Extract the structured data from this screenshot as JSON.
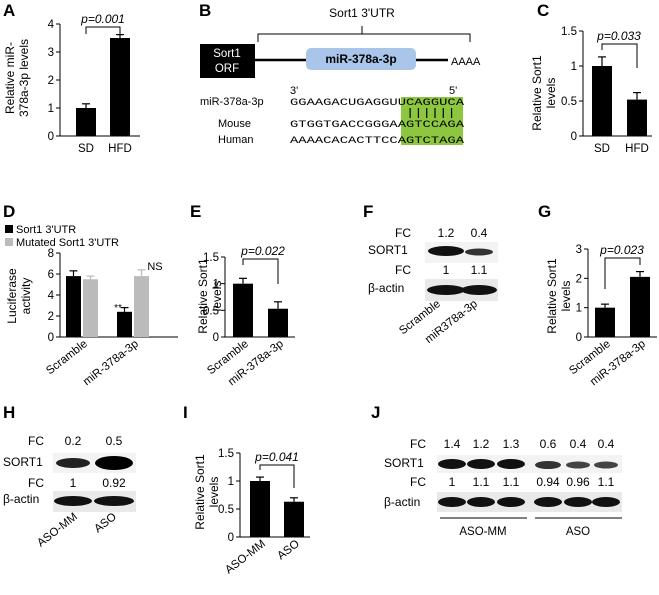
{
  "panels": {
    "A": {
      "label": "A",
      "ylabel": [
        "Relative miR-",
        "378a-3p levels"
      ],
      "pvalue": "p=0.001"
    },
    "B": {
      "label": "B",
      "utr_title": "Sort1 3'UTR",
      "orf_label": [
        "Sort1",
        "ORF"
      ],
      "mirna_box": "miR-378a-3p",
      "polyA": "AAAA",
      "end3": "3'",
      "end5": "5'",
      "rows": [
        {
          "name": "miR-378a-3p",
          "seq": "GGAAGACUGAGGUUCAGGUCA"
        },
        {
          "name": "Mouse",
          "seq": "GTGGTGACCGGGAAGTCCAGA"
        },
        {
          "name": "Human",
          "seq": "AAAACACACTTCCAGTCTAGA"
        }
      ],
      "seed_color": "#8dc63f",
      "box_color": "#a9c6ea"
    },
    "C": {
      "label": "C",
      "ylabel": [
        "Relative Sort1",
        "levels"
      ],
      "pvalue": "p=0.033"
    },
    "D": {
      "label": "D",
      "ylabel": [
        "Luciferase",
        "activity"
      ],
      "legend": [
        "Sort1 3'UTR",
        "Mutated Sort1 3'UTR"
      ],
      "star": "**",
      "ns": "NS"
    },
    "E": {
      "label": "E",
      "ylabel": [
        "Relative Sort1",
        "levels"
      ],
      "pvalue": "p=0.022"
    },
    "F": {
      "label": "F",
      "fc_label": "FC",
      "sort1": "SORT1",
      "actin": "β-actin",
      "fc_top": [
        "1.2",
        "0.4"
      ],
      "fc_bottom": [
        "1",
        "1.1"
      ],
      "lanes": [
        "Scramble",
        "miR378a-3p"
      ]
    },
    "G": {
      "label": "G",
      "ylabel": [
        "Relative Sort1",
        "levels"
      ],
      "pvalue": "p=0.023"
    },
    "H": {
      "label": "H",
      "fc_label": "FC",
      "sort1": "SORT1",
      "actin": "β-actin",
      "fc_top": [
        "0.2",
        "0.5"
      ],
      "fc_bottom": [
        "1",
        "0.92"
      ],
      "lanes": [
        "ASO-MM",
        "ASO"
      ]
    },
    "I": {
      "label": "I",
      "ylabel": [
        "Relative Sort1",
        "levels"
      ],
      "pvalue": "p=0.041"
    },
    "J": {
      "label": "J",
      "fc_label": "FC",
      "sort1": "SORT1",
      "actin": "β-actin",
      "fc_top": [
        "1.4",
        "1.2",
        "1.3",
        "0.6",
        "0.4",
        "0.4"
      ],
      "fc_bottom": [
        "1",
        "1.1",
        "1.1",
        "0.94",
        "0.96",
        "1.1"
      ],
      "groups": [
        "ASO-MM",
        "ASO"
      ]
    }
  },
  "chart_data": [
    {
      "id": "A",
      "type": "bar",
      "categories": [
        "SD",
        "HFD"
      ],
      "values": [
        1,
        3.5
      ],
      "errors": [
        0.15,
        0.12
      ],
      "ylim": [
        0,
        4
      ],
      "yticks": [
        "0",
        "1",
        "2",
        "3",
        "4"
      ],
      "ytickvals": [
        0,
        1,
        2,
        3,
        4
      ],
      "colors": [
        "#000",
        "#000"
      ]
    },
    {
      "id": "C",
      "type": "bar",
      "categories": [
        "SD",
        "HFD"
      ],
      "values": [
        1,
        0.52
      ],
      "errors": [
        0.13,
        0.1
      ],
      "ylim": [
        0,
        1.5
      ],
      "yticks": [
        "0",
        "0.5",
        "1",
        "1.5"
      ],
      "ytickvals": [
        0,
        0.5,
        1,
        1.5
      ],
      "colors": [
        "#000",
        "#000"
      ]
    },
    {
      "id": "D",
      "type": "bar",
      "categories": [
        "Scramble",
        "miR-378a-3p"
      ],
      "series": [
        {
          "name": "Sort1 3'UTR",
          "values": [
            5.8,
            2.4
          ],
          "errors": [
            0.5,
            0.4
          ],
          "color": "#000"
        },
        {
          "name": "Mutated Sort1 3'UTR",
          "values": [
            5.5,
            5.8
          ],
          "errors": [
            0.3,
            0.6
          ],
          "color": "#bbb"
        }
      ],
      "ylim": [
        0,
        8
      ],
      "yticks": [
        "0",
        "2",
        "4",
        "6",
        "8"
      ],
      "ytickvals": [
        0,
        2,
        4,
        6,
        8
      ]
    },
    {
      "id": "E",
      "type": "bar",
      "categories": [
        "Scramble",
        "miR-378a-3p"
      ],
      "values": [
        1,
        0.53
      ],
      "errors": [
        0.1,
        0.13
      ],
      "ylim": [
        0,
        1.5
      ],
      "yticks": [
        "0",
        "0.5",
        "1",
        "1.5"
      ],
      "ytickvals": [
        0,
        0.5,
        1,
        1.5
      ],
      "colors": [
        "#000",
        "#000"
      ]
    },
    {
      "id": "G",
      "type": "bar",
      "categories": [
        "Scramble",
        "miR-378a-3p"
      ],
      "values": [
        1,
        2.05
      ],
      "errors": [
        0.12,
        0.18
      ],
      "ylim": [
        0,
        3
      ],
      "yticks": [
        "0",
        "1",
        "2",
        "3"
      ],
      "ytickvals": [
        0,
        1,
        2,
        3
      ],
      "colors": [
        "#000",
        "#000"
      ]
    },
    {
      "id": "I",
      "type": "bar",
      "categories": [
        "ASO-MM",
        "ASO"
      ],
      "values": [
        1,
        0.63
      ],
      "errors": [
        0.07,
        0.07
      ],
      "ylim": [
        0,
        1.5
      ],
      "yticks": [
        "0",
        "0.5",
        "1",
        "1.5"
      ],
      "ytickvals": [
        0,
        0.5,
        1,
        1.5
      ],
      "colors": [
        "#000",
        "#000"
      ]
    }
  ]
}
